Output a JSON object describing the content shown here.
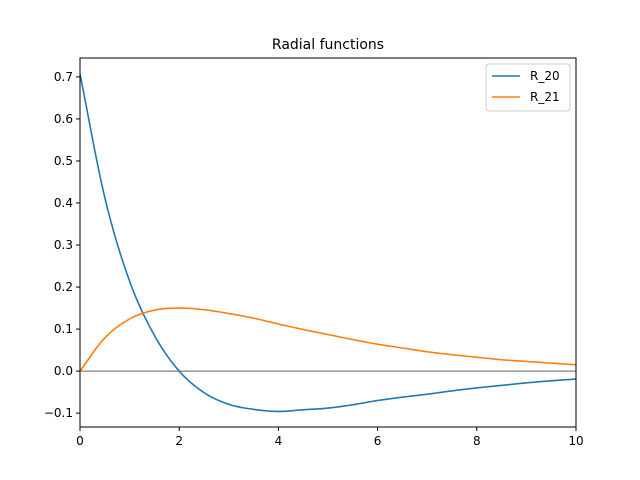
{
  "chart_data": {
    "type": "line",
    "title": "Radial functions",
    "xlabel": "",
    "ylabel": "",
    "xlim": [
      0,
      10
    ],
    "ylim": [
      -0.133,
      0.745
    ],
    "x_ticks": [
      0,
      2,
      4,
      6,
      8,
      10
    ],
    "x_tick_labels": [
      "0",
      "2",
      "4",
      "6",
      "8",
      "10"
    ],
    "y_ticks": [
      -0.1,
      0.0,
      0.1,
      0.2,
      0.3,
      0.4,
      0.5,
      0.6,
      0.7
    ],
    "y_tick_labels": [
      "−0.1",
      "0.0",
      "0.1",
      "0.2",
      "0.3",
      "0.4",
      "0.5",
      "0.6",
      "0.7"
    ],
    "grid": false,
    "legend_position": "top-right",
    "reference_line": {
      "y": 0,
      "color": "#000000"
    },
    "series": [
      {
        "name": "R_20",
        "color": "#1f77b4",
        "x": [
          0,
          0.5,
          1,
          1.5,
          2,
          2.5,
          3,
          3.5,
          4,
          4.5,
          5,
          5.5,
          6,
          6.5,
          7,
          7.5,
          8,
          8.5,
          9,
          9.5,
          10
        ],
        "y": [
          0.707,
          0.413,
          0.214,
          0.085,
          0.0,
          -0.051,
          -0.079,
          -0.091,
          -0.096,
          -0.092,
          -0.088,
          -0.08,
          -0.07,
          -0.062,
          -0.055,
          -0.047,
          -0.04,
          -0.034,
          -0.028,
          -0.023,
          -0.019
        ]
      },
      {
        "name": "R_21",
        "color": "#ff7f0e",
        "x": [
          0,
          0.5,
          1,
          1.5,
          2,
          2.5,
          3,
          3.5,
          4,
          4.5,
          5,
          5.5,
          6,
          6.5,
          7,
          7.5,
          8,
          8.5,
          9,
          9.5,
          10
        ],
        "y": [
          0.0,
          0.079,
          0.124,
          0.145,
          0.15,
          0.146,
          0.137,
          0.126,
          0.112,
          0.099,
          0.087,
          0.075,
          0.064,
          0.055,
          0.046,
          0.039,
          0.033,
          0.027,
          0.023,
          0.019,
          0.015
        ]
      }
    ]
  }
}
